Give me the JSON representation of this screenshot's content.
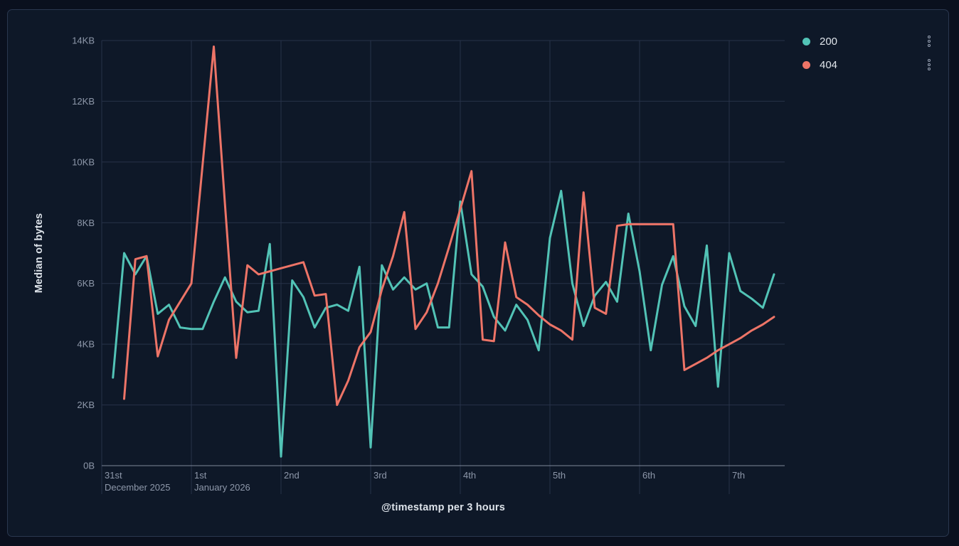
{
  "chart_data": {
    "type": "line",
    "title": "",
    "xlabel": "@timestamp per 3 hours",
    "ylabel": "Median of bytes",
    "grid": true,
    "legend_position": "right",
    "ylim_kb": [
      0,
      14
    ],
    "y_ticks": [
      {
        "value": 0,
        "label": "0B"
      },
      {
        "value": 2,
        "label": "2KB"
      },
      {
        "value": 4,
        "label": "4KB"
      },
      {
        "value": 6,
        "label": "6KB"
      },
      {
        "value": 8,
        "label": "8KB"
      },
      {
        "value": 10,
        "label": "10KB"
      },
      {
        "value": 12,
        "label": "12KB"
      },
      {
        "value": 14,
        "label": "14KB"
      }
    ],
    "day_ticks": [
      {
        "label": "31st",
        "sublabel": "December 2025"
      },
      {
        "label": "1st",
        "sublabel": "January 2026"
      },
      {
        "label": "2nd",
        "sublabel": ""
      },
      {
        "label": "3rd",
        "sublabel": ""
      },
      {
        "label": "4th",
        "sublabel": ""
      },
      {
        "label": "5th",
        "sublabel": ""
      },
      {
        "label": "6th",
        "sublabel": ""
      },
      {
        "label": "7th",
        "sublabel": ""
      }
    ],
    "points_per_day": 8,
    "bucket_hours": 3,
    "series": [
      {
        "name": "200",
        "color": "#52c3b6",
        "values_kb": [
          2.9,
          7.0,
          6.3,
          6.9,
          5.0,
          5.3,
          4.55,
          4.5,
          4.5,
          5.4,
          6.2,
          5.4,
          5.05,
          5.1,
          7.3,
          0.3,
          6.1,
          5.55,
          4.55,
          5.2,
          5.3,
          5.1,
          6.55,
          0.6,
          6.6,
          5.8,
          6.2,
          5.8,
          6.0,
          4.55,
          4.55,
          8.7,
          6.3,
          5.9,
          4.9,
          4.45,
          5.3,
          4.8,
          3.8,
          7.5,
          9.05,
          6.0,
          4.6,
          5.6,
          6.05,
          5.4,
          8.3,
          6.4,
          3.8,
          5.95,
          6.9,
          5.25,
          4.6,
          7.25,
          2.6,
          7.0,
          5.75,
          5.5,
          5.2,
          6.3
        ]
      },
      {
        "name": "404",
        "color": "#ed7467",
        "values_kb": [
          null,
          2.2,
          6.8,
          6.9,
          3.6,
          4.8,
          5.4,
          6.0,
          9.9,
          13.8,
          8.6,
          3.55,
          6.6,
          6.3,
          6.4,
          6.5,
          6.6,
          6.7,
          5.6,
          5.65,
          2.0,
          2.8,
          3.9,
          4.4,
          5.8,
          6.9,
          8.35,
          4.5,
          5.05,
          6.0,
          7.2,
          8.45,
          9.7,
          4.15,
          4.1,
          7.35,
          5.55,
          5.3,
          4.95,
          4.65,
          4.45,
          4.15,
          9.0,
          5.2,
          5.0,
          7.9,
          7.95,
          7.95,
          7.95,
          7.95,
          7.95,
          3.15,
          3.35,
          3.55,
          3.8,
          4.0,
          4.2,
          4.45,
          4.65,
          4.9
        ]
      }
    ]
  },
  "style": {
    "panel_bg": "#0e1828",
    "outer_bg": "#0a101e",
    "panel_border": "#2a374f",
    "gridline": "#273249",
    "axis_line": "#7e8899",
    "tick_label": "#8e98aa",
    "title_text": "#dde3ea",
    "legend_text": "#dfe4ea",
    "kebab_icon": "#98a2b3"
  }
}
